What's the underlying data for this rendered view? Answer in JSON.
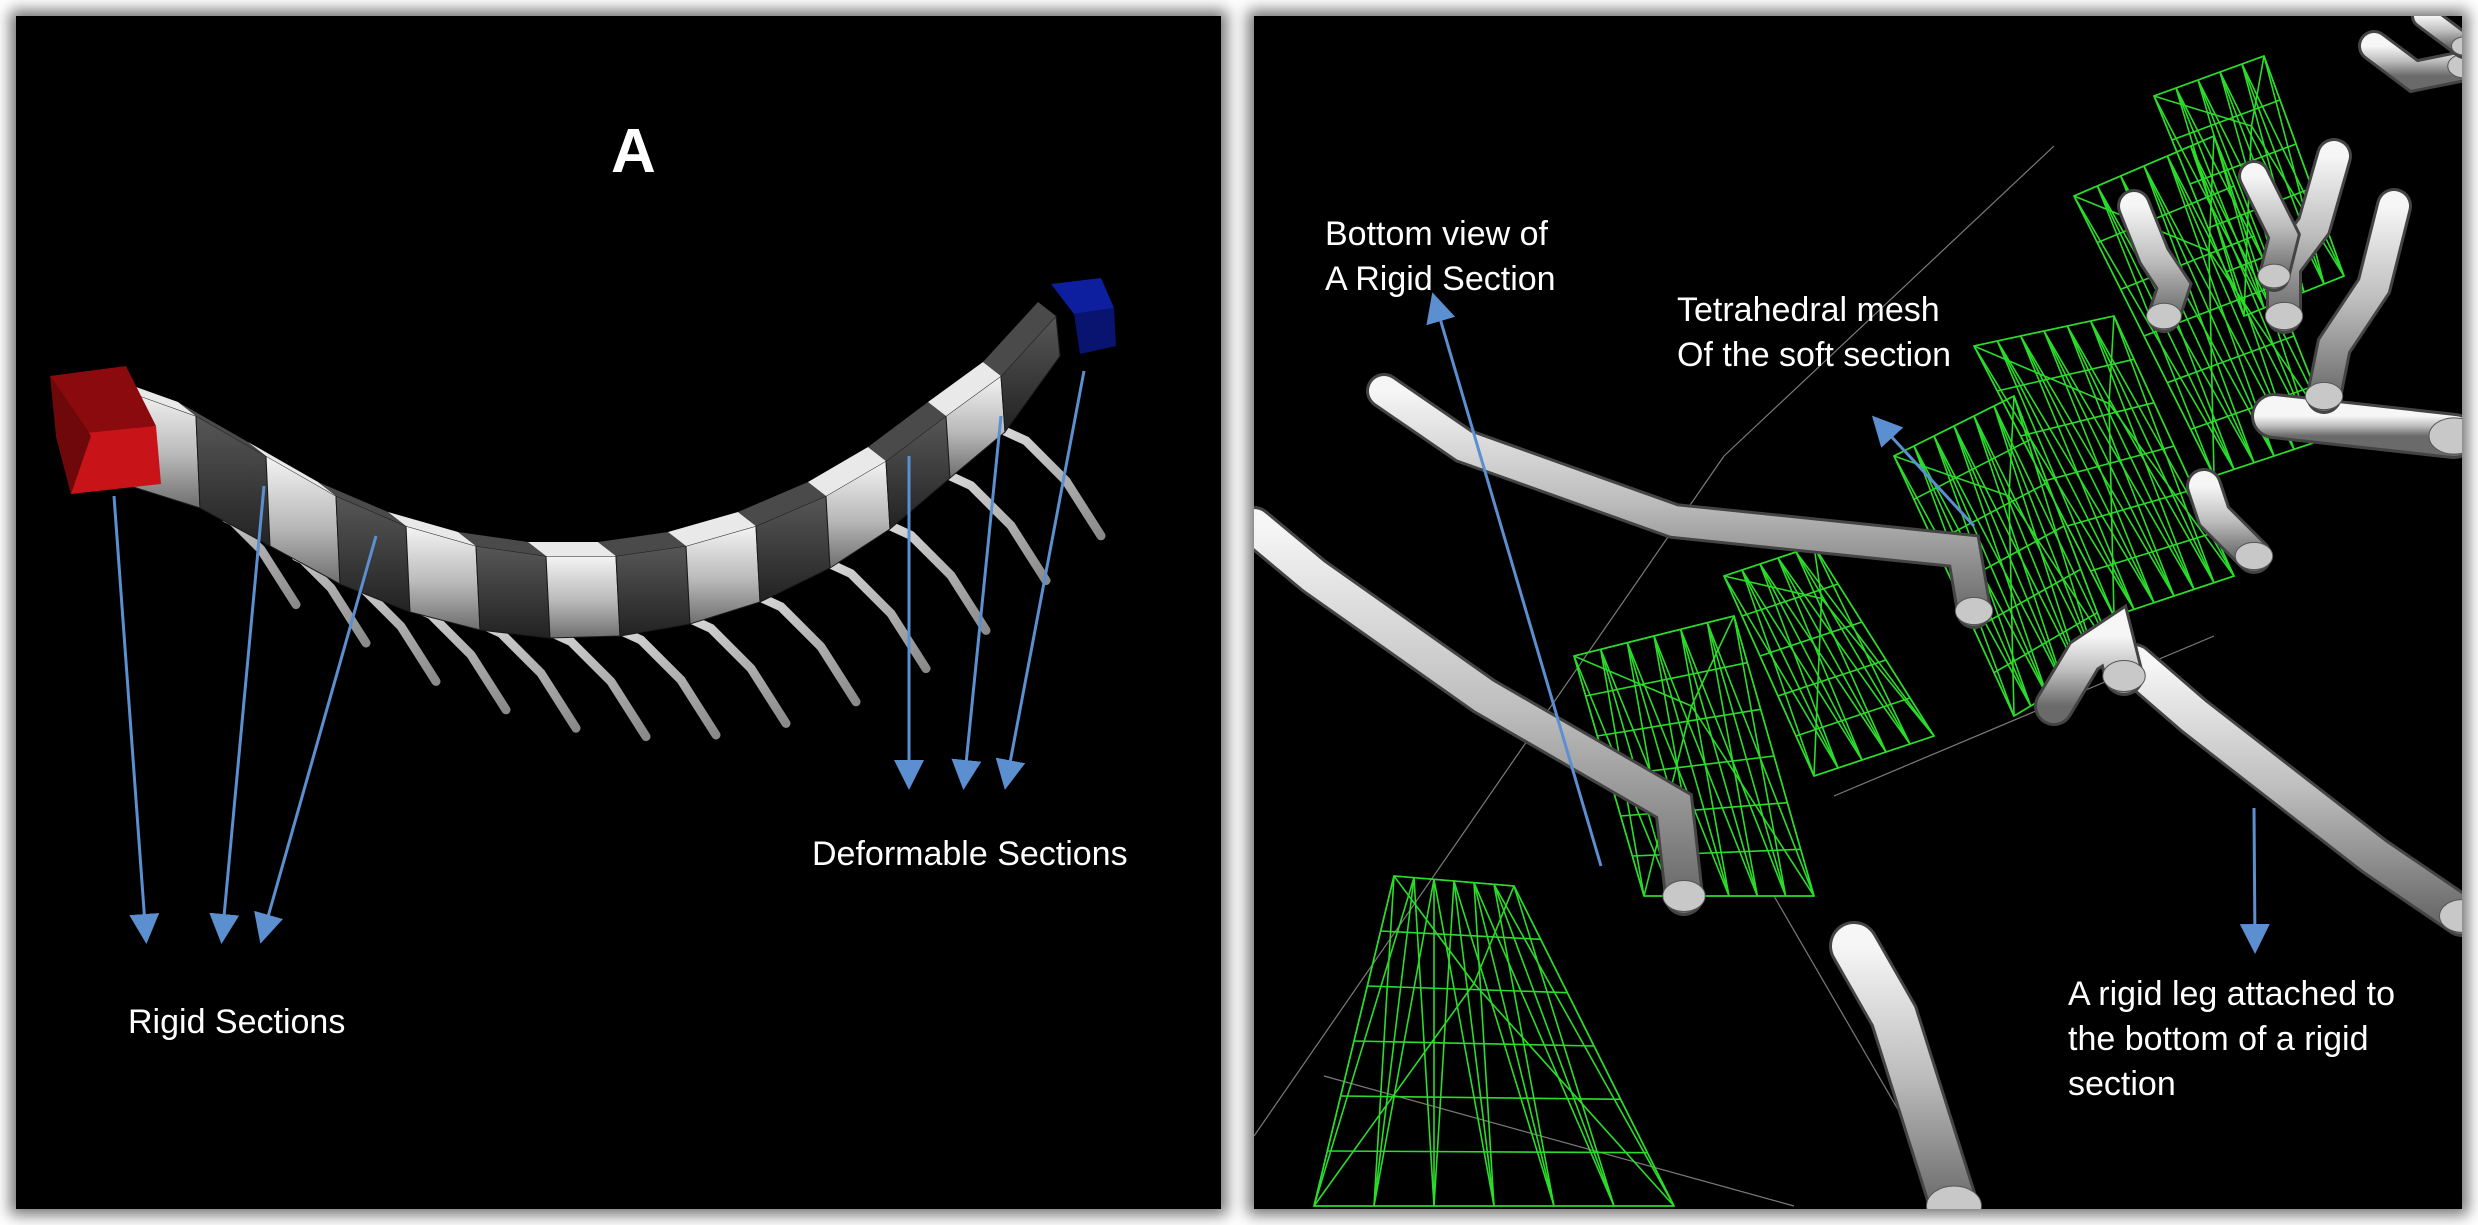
{
  "panel_a": {
    "title": "A",
    "rigid_label": "Rigid Sections",
    "deformable_label": "Deformable Sections"
  },
  "panel_b": {
    "bottom_view_label": [
      "Bottom view of",
      "A Rigid Section"
    ],
    "tetra_label": [
      "Tetrahedral mesh",
      "Of the soft section"
    ],
    "leg_label": [
      "A rigid leg attached to",
      "the bottom of a rigid",
      "section"
    ]
  },
  "colors": {
    "background": "#000000",
    "arrow": "#5b8fd0",
    "mesh": "#2bdc2b",
    "rigid_end": "#c0141a",
    "head_end": "#0a1a8a",
    "segment_light": "#d6d6d6",
    "segment_dark": "#3a3a3a"
  }
}
